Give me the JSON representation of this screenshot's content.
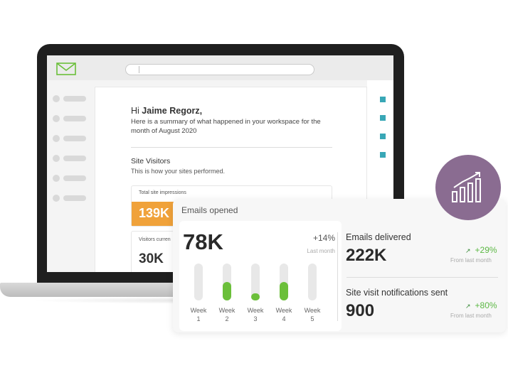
{
  "email": {
    "greeting_prefix": "Hi",
    "recipient": "Jaime Regorz,",
    "summary": "Here is a summary of what happened in your workspace for the month of August 2020",
    "site_visitors_title": "Site Visitors",
    "site_visitors_subtitle": "This is how your sites performed.",
    "impressions_label": "Total site impressions",
    "impressions_value": "139K",
    "visitors_label": "Visitors curren",
    "visitors_value": "30K"
  },
  "analytics": {
    "title": "Emails opened",
    "opened_value": "78K",
    "opened_delta": "+14%",
    "opened_delta_note": "Last month",
    "weeks": [
      {
        "label": "Week",
        "num": "1",
        "level": 0.0
      },
      {
        "label": "Week",
        "num": "2",
        "level": 0.5
      },
      {
        "label": "Week",
        "num": "3",
        "level": 0.2
      },
      {
        "label": "Week",
        "num": "4",
        "level": 0.5
      },
      {
        "label": "Week",
        "num": "5",
        "level": 0.0
      }
    ],
    "delivered_title": "Emails delivered",
    "delivered_value": "222K",
    "delivered_delta": "+29%",
    "delivered_note": "From last month",
    "notifications_title": "Site visit notifications sent",
    "notifications_value": "900",
    "notifications_delta": "+80%",
    "notifications_note": "From last month"
  },
  "icons": {
    "mail": "mail-icon",
    "chart_badge": "bar-chart-up-icon",
    "trend": "arrow-up-right-icon"
  },
  "colors": {
    "accent_orange": "#f0a23a",
    "accent_green": "#6bbf3a",
    "badge_purple": "#8a6c91",
    "teal": "#38a7b6"
  }
}
